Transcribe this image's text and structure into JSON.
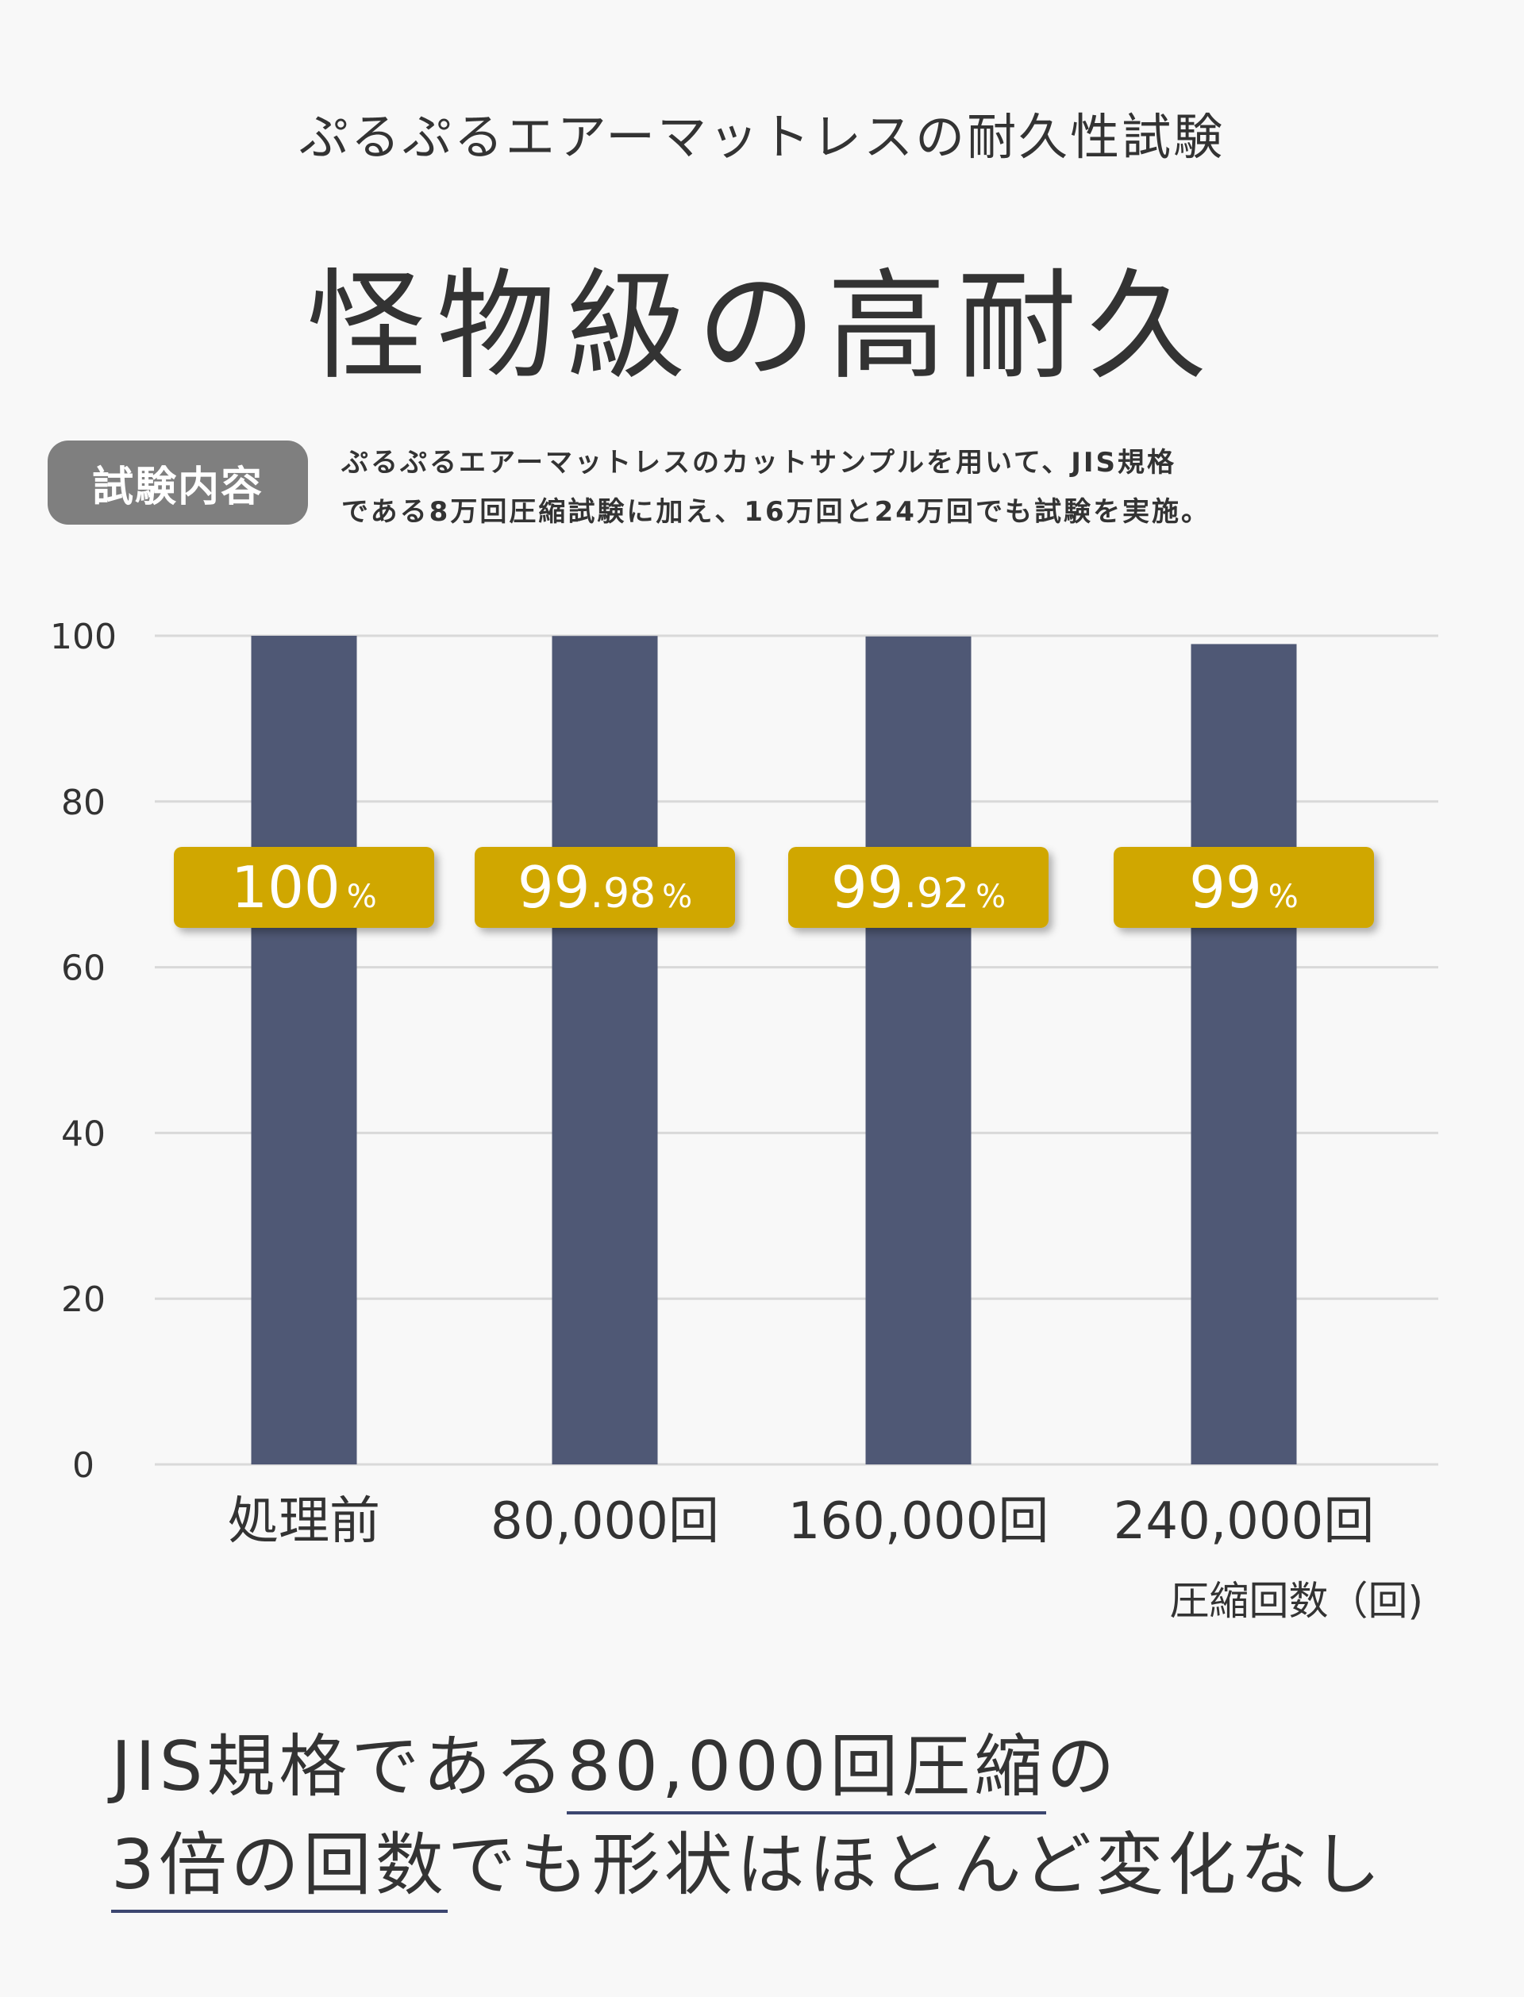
{
  "header": {
    "subtitle": "ぷるぷるエアーマットレスの耐久性試験",
    "headline": "怪物級の高耐久"
  },
  "test": {
    "badge": "試験内容",
    "desc_line1": "ぷるぷるエアーマットレスのカットサンプルを用いて、JIS規格",
    "desc_line2": "である8万回圧縮試験に加え、16万回と24万回でも試験を実施。"
  },
  "chart_data": {
    "type": "bar",
    "categories": [
      "処理前",
      "80,000回",
      "160,000回",
      "240,000回"
    ],
    "values": [
      100,
      99.98,
      99.92,
      99
    ],
    "value_labels": [
      {
        "main": "100",
        "decimal": "",
        "unit": "%"
      },
      {
        "main": "99",
        "decimal": ".98",
        "unit": "%"
      },
      {
        "main": "99",
        "decimal": ".92",
        "unit": "%"
      },
      {
        "main": "99",
        "decimal": "",
        "unit": "%"
      }
    ],
    "ylim": [
      0,
      100
    ],
    "yticks": [
      0,
      20,
      40,
      60,
      80,
      100
    ],
    "xlabel": "圧縮回数（回)",
    "ylabel": "",
    "grid": true,
    "colors": {
      "bar": "#4f5875",
      "label_box": "#d0a700",
      "label_text": "#ffffff",
      "grid": "#d9d9d9"
    }
  },
  "footer": {
    "line1_pre": "JIS規格である",
    "line1_highlight": "80,000回圧縮",
    "line1_post": "の",
    "line2_highlight": "3倍の回数",
    "line2_post": "でも形状はほとんど変化なし"
  }
}
